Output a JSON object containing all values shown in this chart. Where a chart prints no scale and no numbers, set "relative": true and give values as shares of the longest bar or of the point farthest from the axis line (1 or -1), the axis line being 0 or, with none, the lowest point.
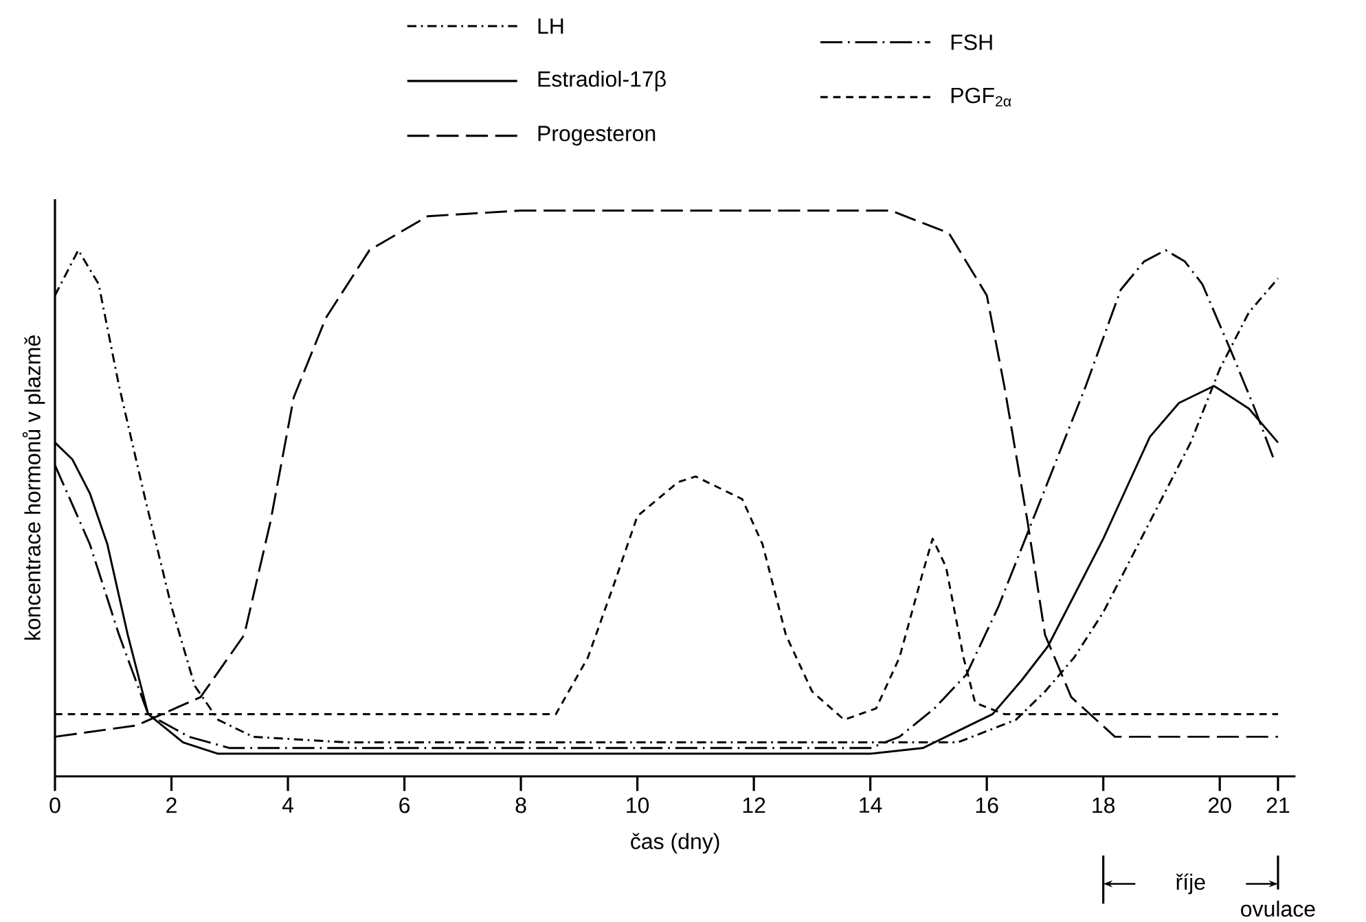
{
  "chart_data": {
    "type": "line",
    "relative": true,
    "xlabel": "čas (dny)",
    "ylabel": "koncentrace hormonů v plazmě",
    "xlim": [
      0,
      21.3
    ],
    "xticks": [
      0,
      2,
      4,
      6,
      8,
      10,
      12,
      14,
      16,
      18,
      20,
      21
    ],
    "legend": "top",
    "grid": false,
    "series": [
      {
        "name": "LH",
        "color": "#000000",
        "line_style": "dashdot",
        "x": [
          0,
          0.4,
          0.75,
          1.1,
          1.55,
          2,
          2.4,
          2.8,
          3.4,
          5,
          8,
          12,
          15,
          15.5,
          16,
          16.5,
          17,
          17.5,
          18,
          18.5,
          19,
          19.5,
          20,
          20.5,
          21
        ],
        "values": [
          0.85,
          0.93,
          0.87,
          0.69,
          0.49,
          0.3,
          0.16,
          0.1,
          0.07,
          0.06,
          0.06,
          0.06,
          0.06,
          0.06,
          0.08,
          0.1,
          0.15,
          0.21,
          0.29,
          0.39,
          0.49,
          0.59,
          0.72,
          0.82,
          0.88
        ]
      },
      {
        "name": "FSH",
        "color": "#000000",
        "line_style": "longdashdot",
        "x": [
          0,
          0.6,
          1.1,
          1.6,
          2.3,
          3,
          8,
          14,
          14.5,
          15.1,
          15.65,
          16.2,
          16.7,
          17.2,
          17.7,
          18.3,
          18.7,
          19.07,
          19.4,
          19.7,
          20.2,
          20.6,
          20.93
        ],
        "values": [
          0.55,
          0.41,
          0.25,
          0.11,
          0.07,
          0.05,
          0.05,
          0.05,
          0.07,
          0.12,
          0.18,
          0.3,
          0.43,
          0.56,
          0.69,
          0.86,
          0.91,
          0.93,
          0.91,
          0.87,
          0.75,
          0.65,
          0.56
        ]
      },
      {
        "name": "Estradiol-17β",
        "color": "#000000",
        "line_style": "solid",
        "x": [
          0,
          0.3,
          0.6,
          0.9,
          1.25,
          1.6,
          2.2,
          2.8,
          8,
          14,
          14.9,
          15.5,
          16.1,
          16.6,
          17.05,
          17.5,
          18,
          18.4,
          18.8,
          19.3,
          19.9,
          20.5,
          21
        ],
        "values": [
          0.59,
          0.56,
          0.5,
          0.41,
          0.25,
          0.11,
          0.06,
          0.04,
          0.04,
          0.04,
          0.05,
          0.08,
          0.11,
          0.17,
          0.23,
          0.32,
          0.42,
          0.51,
          0.6,
          0.66,
          0.69,
          0.65,
          0.59
        ]
      },
      {
        "name": "PGF$_{2α}$",
        "color": "#000000",
        "line_style": "dashed",
        "x": [
          0,
          8,
          8.6,
          9.15,
          9.6,
          10,
          10.7,
          11,
          11.8,
          12.15,
          12.55,
          13,
          13.55,
          14.1,
          14.5,
          14.9,
          15.07,
          15.3,
          15.6,
          15.8,
          16.3,
          21
        ],
        "values": [
          0.11,
          0.11,
          0.11,
          0.21,
          0.34,
          0.46,
          0.52,
          0.53,
          0.49,
          0.41,
          0.25,
          0.15,
          0.1,
          0.12,
          0.21,
          0.36,
          0.42,
          0.37,
          0.21,
          0.13,
          0.11,
          0.11
        ]
      },
      {
        "name": "Progesteron",
        "color": "#000000",
        "line_style": "longdash",
        "x": [
          0,
          1.4,
          2.5,
          3.25,
          3.7,
          4.1,
          4.65,
          5.4,
          6.4,
          8,
          10,
          12,
          14.35,
          15.35,
          16,
          16.3,
          16.7,
          17,
          17.45,
          18.2,
          21
        ],
        "values": [
          0.07,
          0.09,
          0.14,
          0.25,
          0.45,
          0.67,
          0.81,
          0.93,
          0.99,
          1.0,
          1.0,
          1.0,
          1.0,
          0.96,
          0.85,
          0.69,
          0.45,
          0.25,
          0.14,
          0.07,
          0.07
        ]
      }
    ],
    "annotations": [
      "říje",
      {
        "text": "ovulace",
        "x": 21
      }
    ]
  }
}
